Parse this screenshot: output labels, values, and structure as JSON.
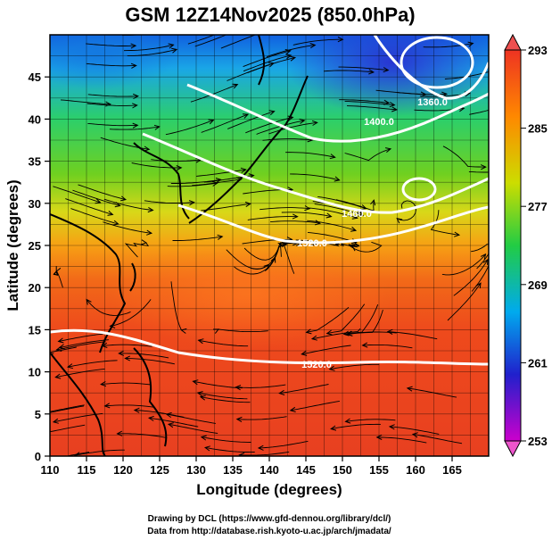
{
  "chart_data": {
    "type": "heatmap",
    "title": "GSM 12Z14Nov2025 (850.0hPa)",
    "xlabel": "Longitude (degrees)",
    "ylabel": "Latitude  (degrees)",
    "xlim": [
      110,
      170
    ],
    "ylim": [
      0,
      50
    ],
    "x_ticks": [
      "110",
      "115",
      "120",
      "125",
      "130",
      "135",
      "140",
      "145",
      "150",
      "155",
      "160",
      "165"
    ],
    "y_ticks": [
      "0",
      "5",
      "10",
      "15",
      "20",
      "25",
      "30",
      "35",
      "40",
      "45"
    ],
    "colorbar": {
      "range": [
        253,
        293
      ],
      "ticks": [
        "253",
        "261",
        "269",
        "277",
        "285",
        "293"
      ],
      "colors": [
        "#cc00cc",
        "#2020cc",
        "#00aaee",
        "#22cc44",
        "#ccdd00",
        "#ff8800",
        "#ee3322"
      ]
    },
    "temperature_samples": [
      {
        "lon": 115,
        "lat": 47,
        "value": 268
      },
      {
        "lon": 140,
        "lat": 47,
        "value": 262
      },
      {
        "lon": 160,
        "lat": 45,
        "value": 264
      },
      {
        "lon": 120,
        "lat": 38,
        "value": 277
      },
      {
        "lon": 150,
        "lat": 35,
        "value": 276
      },
      {
        "lon": 165,
        "lat": 30,
        "value": 281
      },
      {
        "lon": 140,
        "lat": 25,
        "value": 286
      },
      {
        "lon": 130,
        "lat": 20,
        "value": 289
      },
      {
        "lon": 150,
        "lat": 10,
        "value": 289
      },
      {
        "lon": 120,
        "lat": 5,
        "value": 290
      }
    ],
    "contour_labels": [
      "1520.0",
      "1520.0",
      "1460.0",
      "1400.0",
      "1360.0"
    ],
    "wind_field": "streamlines"
  },
  "credits": {
    "line1": "Drawing by DCL (https://www.gfd-dennou.org/library/dcl/)",
    "line2": "Data from http://database.rish.kyoto-u.ac.jp/arch/jmadata/"
  }
}
